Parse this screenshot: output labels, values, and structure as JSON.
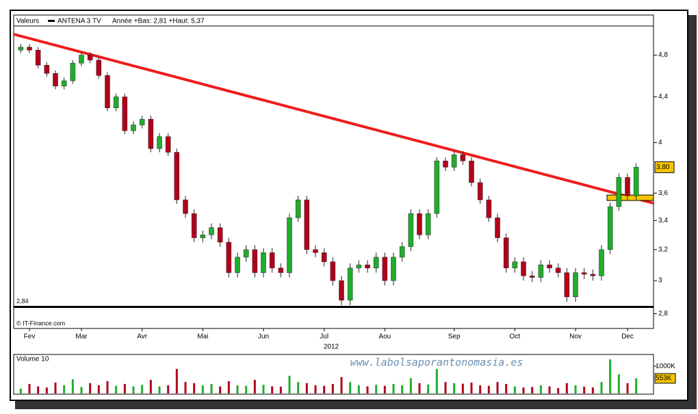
{
  "chart_data": [
    {
      "type": "candlestick",
      "legend_title": "Valeurs",
      "series_name": "ANTENA 3 TV",
      "info": "Année +Bas: 2,81 +Haut: 5,37",
      "source": "© IT-Finance.com",
      "xlabel": "2012",
      "log_scale": true,
      "up_color": "#1fae2c",
      "down_color": "#b3001b",
      "categories": [
        null,
        "Fev",
        null,
        null,
        null,
        null,
        null,
        "Mar",
        null,
        null,
        null,
        null,
        null,
        null,
        "Avr",
        null,
        null,
        null,
        null,
        null,
        null,
        "Mai",
        null,
        null,
        null,
        null,
        null,
        null,
        "Jun",
        null,
        null,
        null,
        null,
        null,
        null,
        "Jul",
        null,
        null,
        null,
        null,
        null,
        null,
        "Aou",
        null,
        null,
        null,
        null,
        null,
        null,
        null,
        "Sep",
        null,
        null,
        null,
        null,
        null,
        null,
        "Oct",
        null,
        null,
        null,
        null,
        null,
        null,
        "Nov",
        null,
        null,
        null,
        null,
        null,
        "Dec",
        null
      ],
      "open": [
        4.85,
        4.88,
        4.85,
        4.7,
        4.62,
        4.5,
        4.55,
        4.72,
        4.8,
        4.75,
        4.6,
        4.3,
        4.4,
        4.1,
        4.15,
        4.2,
        3.95,
        4.05,
        3.92,
        3.55,
        3.45,
        3.28,
        3.3,
        3.35,
        3.25,
        3.05,
        3.15,
        3.2,
        3.05,
        3.18,
        3.08,
        3.05,
        3.42,
        3.55,
        3.2,
        3.18,
        3.12,
        3.0,
        2.88,
        3.08,
        3.1,
        3.08,
        3.15,
        3.0,
        3.15,
        3.22,
        3.45,
        3.3,
        3.45,
        3.85,
        3.8,
        3.9,
        3.85,
        3.68,
        3.55,
        3.42,
        3.28,
        3.08,
        3.12,
        3.03,
        3.02,
        3.1,
        3.08,
        3.05,
        2.9,
        3.05,
        3.04,
        3.03,
        3.2,
        3.5,
        3.72,
        3.58
      ],
      "high": [
        4.91,
        4.91,
        4.88,
        4.73,
        4.65,
        4.58,
        4.75,
        4.83,
        4.83,
        4.78,
        4.63,
        4.43,
        4.43,
        4.18,
        4.23,
        4.23,
        4.08,
        4.08,
        3.95,
        3.58,
        3.48,
        3.33,
        3.38,
        3.38,
        3.28,
        3.18,
        3.23,
        3.23,
        3.21,
        3.21,
        3.11,
        3.45,
        3.58,
        3.58,
        3.23,
        3.21,
        3.15,
        3.03,
        3.11,
        3.13,
        3.13,
        3.18,
        3.18,
        3.18,
        3.25,
        3.48,
        3.48,
        3.48,
        3.88,
        3.88,
        3.93,
        3.93,
        3.88,
        3.71,
        3.58,
        3.45,
        3.31,
        3.15,
        3.15,
        3.06,
        3.13,
        3.13,
        3.11,
        3.08,
        3.08,
        3.08,
        3.07,
        3.23,
        3.53,
        3.75,
        3.75,
        3.83
      ],
      "low": [
        4.82,
        4.82,
        4.67,
        4.59,
        4.47,
        4.47,
        4.52,
        4.69,
        4.72,
        4.57,
        4.27,
        4.27,
        4.07,
        4.07,
        4.12,
        3.92,
        3.92,
        3.89,
        3.52,
        3.42,
        3.25,
        3.25,
        3.27,
        3.22,
        3.02,
        3.02,
        3.12,
        3.02,
        3.02,
        3.05,
        3.02,
        3.02,
        3.39,
        3.17,
        3.15,
        3.09,
        2.97,
        2.85,
        2.85,
        3.05,
        3.05,
        3.05,
        2.97,
        2.97,
        3.12,
        3.19,
        3.27,
        3.27,
        3.42,
        3.77,
        3.77,
        3.82,
        3.65,
        3.52,
        3.39,
        3.25,
        3.05,
        3.05,
        3.0,
        2.99,
        2.99,
        3.05,
        3.02,
        2.87,
        2.87,
        3.01,
        3.0,
        3.0,
        3.17,
        3.47,
        3.55,
        3.55
      ],
      "close": [
        4.88,
        4.85,
        4.7,
        4.62,
        4.5,
        4.55,
        4.72,
        4.8,
        4.75,
        4.6,
        4.3,
        4.4,
        4.1,
        4.15,
        4.2,
        3.95,
        4.05,
        3.92,
        3.55,
        3.45,
        3.28,
        3.3,
        3.35,
        3.25,
        3.05,
        3.15,
        3.2,
        3.05,
        3.18,
        3.08,
        3.05,
        3.42,
        3.55,
        3.2,
        3.18,
        3.12,
        3.0,
        2.88,
        3.08,
        3.1,
        3.08,
        3.15,
        3.0,
        3.15,
        3.22,
        3.45,
        3.3,
        3.45,
        3.85,
        3.8,
        3.9,
        3.85,
        3.68,
        3.55,
        3.42,
        3.28,
        3.08,
        3.12,
        3.03,
        3.02,
        3.1,
        3.08,
        3.05,
        2.9,
        3.05,
        3.04,
        3.03,
        3.2,
        3.5,
        3.72,
        3.58,
        3.8
      ],
      "last_value": {
        "value": 3.8,
        "label": "3,80"
      },
      "support": {
        "value": 2.84,
        "label": "2,84"
      },
      "ylim": [
        2.77,
        5.1
      ],
      "yticks": [
        {
          "value": 2.8,
          "label": "2,8"
        },
        3,
        {
          "value": 3.2,
          "label": "3,2"
        },
        {
          "value": 3.4,
          "label": "3,4"
        },
        {
          "value": 3.6,
          "label": "3,6"
        },
        4,
        {
          "value": 4.4,
          "label": "4,4"
        },
        {
          "value": 4.8,
          "label": "4,8"
        }
      ]
    },
    {
      "type": "bar",
      "title": "Volume 10",
      "watermark": "www.labolsaporantonomasia.es",
      "values": [
        180000,
        350000,
        260000,
        220000,
        400000,
        300000,
        520000,
        240000,
        380000,
        300000,
        450000,
        280000,
        350000,
        260000,
        320000,
        500000,
        260000,
        300000,
        900000,
        420000,
        380000,
        300000,
        350000,
        260000,
        450000,
        300000,
        280000,
        500000,
        320000,
        260000,
        250000,
        650000,
        420000,
        380000,
        300000,
        280000,
        350000,
        600000,
        420000,
        300000,
        260000,
        320000,
        280000,
        350000,
        300000,
        560000,
        380000,
        330000,
        900000,
        420000,
        380000,
        360000,
        400000,
        300000,
        280000,
        420000,
        350000,
        260000,
        220000,
        240000,
        300000,
        260000,
        200000,
        380000,
        300000,
        250000,
        220000,
        420000,
        1250000,
        700000,
        380000,
        553000
      ],
      "last_value": {
        "value": 553000,
        "label": "553K"
      },
      "ylim": [
        0,
        1380000
      ],
      "yticks": [
        {
          "value": 1000000,
          "label": "1000K"
        }
      ]
    }
  ]
}
